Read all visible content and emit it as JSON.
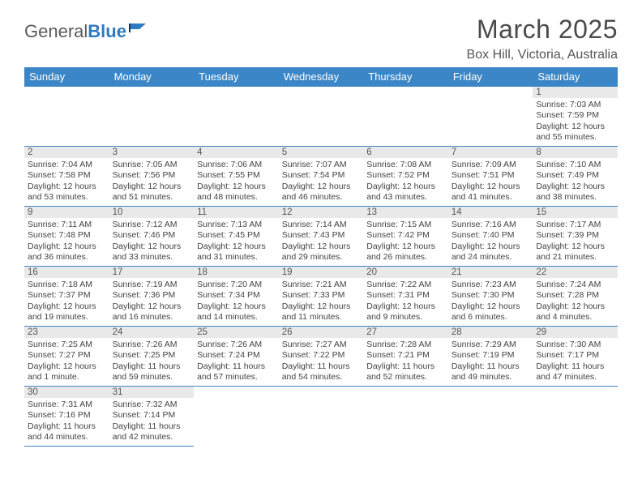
{
  "brand": {
    "part1": "General",
    "part2": "Blue"
  },
  "title": "March 2025",
  "location": "Box Hill, Victoria, Australia",
  "colors": {
    "header_bg": "#3b86c6",
    "header_text": "#ffffff",
    "daynum_bg": "#e9e9e9",
    "border": "#3b86c6",
    "logo_blue": "#2f7bbf"
  },
  "weekdays": [
    "Sunday",
    "Monday",
    "Tuesday",
    "Wednesday",
    "Thursday",
    "Friday",
    "Saturday"
  ],
  "weeks": [
    [
      null,
      null,
      null,
      null,
      null,
      null,
      {
        "n": "1",
        "sr": "Sunrise: 7:03 AM",
        "ss": "Sunset: 7:59 PM",
        "d1": "Daylight: 12 hours",
        "d2": "and 55 minutes."
      }
    ],
    [
      {
        "n": "2",
        "sr": "Sunrise: 7:04 AM",
        "ss": "Sunset: 7:58 PM",
        "d1": "Daylight: 12 hours",
        "d2": "and 53 minutes."
      },
      {
        "n": "3",
        "sr": "Sunrise: 7:05 AM",
        "ss": "Sunset: 7:56 PM",
        "d1": "Daylight: 12 hours",
        "d2": "and 51 minutes."
      },
      {
        "n": "4",
        "sr": "Sunrise: 7:06 AM",
        "ss": "Sunset: 7:55 PM",
        "d1": "Daylight: 12 hours",
        "d2": "and 48 minutes."
      },
      {
        "n": "5",
        "sr": "Sunrise: 7:07 AM",
        "ss": "Sunset: 7:54 PM",
        "d1": "Daylight: 12 hours",
        "d2": "and 46 minutes."
      },
      {
        "n": "6",
        "sr": "Sunrise: 7:08 AM",
        "ss": "Sunset: 7:52 PM",
        "d1": "Daylight: 12 hours",
        "d2": "and 43 minutes."
      },
      {
        "n": "7",
        "sr": "Sunrise: 7:09 AM",
        "ss": "Sunset: 7:51 PM",
        "d1": "Daylight: 12 hours",
        "d2": "and 41 minutes."
      },
      {
        "n": "8",
        "sr": "Sunrise: 7:10 AM",
        "ss": "Sunset: 7:49 PM",
        "d1": "Daylight: 12 hours",
        "d2": "and 38 minutes."
      }
    ],
    [
      {
        "n": "9",
        "sr": "Sunrise: 7:11 AM",
        "ss": "Sunset: 7:48 PM",
        "d1": "Daylight: 12 hours",
        "d2": "and 36 minutes."
      },
      {
        "n": "10",
        "sr": "Sunrise: 7:12 AM",
        "ss": "Sunset: 7:46 PM",
        "d1": "Daylight: 12 hours",
        "d2": "and 33 minutes."
      },
      {
        "n": "11",
        "sr": "Sunrise: 7:13 AM",
        "ss": "Sunset: 7:45 PM",
        "d1": "Daylight: 12 hours",
        "d2": "and 31 minutes."
      },
      {
        "n": "12",
        "sr": "Sunrise: 7:14 AM",
        "ss": "Sunset: 7:43 PM",
        "d1": "Daylight: 12 hours",
        "d2": "and 29 minutes."
      },
      {
        "n": "13",
        "sr": "Sunrise: 7:15 AM",
        "ss": "Sunset: 7:42 PM",
        "d1": "Daylight: 12 hours",
        "d2": "and 26 minutes."
      },
      {
        "n": "14",
        "sr": "Sunrise: 7:16 AM",
        "ss": "Sunset: 7:40 PM",
        "d1": "Daylight: 12 hours",
        "d2": "and 24 minutes."
      },
      {
        "n": "15",
        "sr": "Sunrise: 7:17 AM",
        "ss": "Sunset: 7:39 PM",
        "d1": "Daylight: 12 hours",
        "d2": "and 21 minutes."
      }
    ],
    [
      {
        "n": "16",
        "sr": "Sunrise: 7:18 AM",
        "ss": "Sunset: 7:37 PM",
        "d1": "Daylight: 12 hours",
        "d2": "and 19 minutes."
      },
      {
        "n": "17",
        "sr": "Sunrise: 7:19 AM",
        "ss": "Sunset: 7:36 PM",
        "d1": "Daylight: 12 hours",
        "d2": "and 16 minutes."
      },
      {
        "n": "18",
        "sr": "Sunrise: 7:20 AM",
        "ss": "Sunset: 7:34 PM",
        "d1": "Daylight: 12 hours",
        "d2": "and 14 minutes."
      },
      {
        "n": "19",
        "sr": "Sunrise: 7:21 AM",
        "ss": "Sunset: 7:33 PM",
        "d1": "Daylight: 12 hours",
        "d2": "and 11 minutes."
      },
      {
        "n": "20",
        "sr": "Sunrise: 7:22 AM",
        "ss": "Sunset: 7:31 PM",
        "d1": "Daylight: 12 hours",
        "d2": "and 9 minutes."
      },
      {
        "n": "21",
        "sr": "Sunrise: 7:23 AM",
        "ss": "Sunset: 7:30 PM",
        "d1": "Daylight: 12 hours",
        "d2": "and 6 minutes."
      },
      {
        "n": "22",
        "sr": "Sunrise: 7:24 AM",
        "ss": "Sunset: 7:28 PM",
        "d1": "Daylight: 12 hours",
        "d2": "and 4 minutes."
      }
    ],
    [
      {
        "n": "23",
        "sr": "Sunrise: 7:25 AM",
        "ss": "Sunset: 7:27 PM",
        "d1": "Daylight: 12 hours",
        "d2": "and 1 minute."
      },
      {
        "n": "24",
        "sr": "Sunrise: 7:26 AM",
        "ss": "Sunset: 7:25 PM",
        "d1": "Daylight: 11 hours",
        "d2": "and 59 minutes."
      },
      {
        "n": "25",
        "sr": "Sunrise: 7:26 AM",
        "ss": "Sunset: 7:24 PM",
        "d1": "Daylight: 11 hours",
        "d2": "and 57 minutes."
      },
      {
        "n": "26",
        "sr": "Sunrise: 7:27 AM",
        "ss": "Sunset: 7:22 PM",
        "d1": "Daylight: 11 hours",
        "d2": "and 54 minutes."
      },
      {
        "n": "27",
        "sr": "Sunrise: 7:28 AM",
        "ss": "Sunset: 7:21 PM",
        "d1": "Daylight: 11 hours",
        "d2": "and 52 minutes."
      },
      {
        "n": "28",
        "sr": "Sunrise: 7:29 AM",
        "ss": "Sunset: 7:19 PM",
        "d1": "Daylight: 11 hours",
        "d2": "and 49 minutes."
      },
      {
        "n": "29",
        "sr": "Sunrise: 7:30 AM",
        "ss": "Sunset: 7:17 PM",
        "d1": "Daylight: 11 hours",
        "d2": "and 47 minutes."
      }
    ],
    [
      {
        "n": "30",
        "sr": "Sunrise: 7:31 AM",
        "ss": "Sunset: 7:16 PM",
        "d1": "Daylight: 11 hours",
        "d2": "and 44 minutes."
      },
      {
        "n": "31",
        "sr": "Sunrise: 7:32 AM",
        "ss": "Sunset: 7:14 PM",
        "d1": "Daylight: 11 hours",
        "d2": "and 42 minutes."
      },
      null,
      null,
      null,
      null,
      null
    ]
  ]
}
